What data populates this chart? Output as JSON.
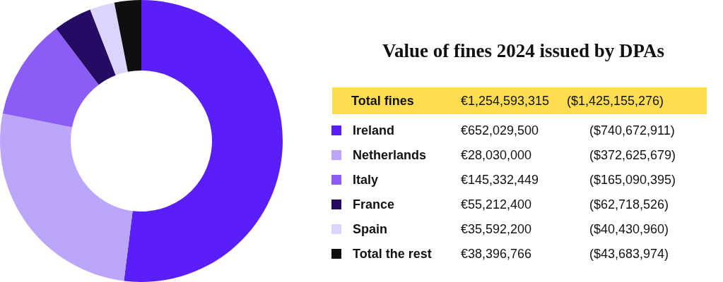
{
  "chart_data": {
    "type": "donut",
    "title": "Value of fines 2024 issued by DPAs",
    "categories": [
      "Ireland",
      "Netherlands",
      "Italy",
      "France",
      "Spain",
      "Total the rest"
    ],
    "values": [
      740672911,
      372625679,
      165090395,
      62718526,
      40430960,
      43683974
    ],
    "value_labels": [
      "($740,672,911)",
      "($372,625,679)",
      "($165,090,395)",
      "($62,718,526)",
      "($40,430,960)",
      "($43,683,974)"
    ],
    "legend": "right",
    "colors": [
      "#5a1ff8",
      "#bba6fc",
      "#8b5cf6",
      "#250b63",
      "#ddd4fd",
      "#0f0f12"
    ],
    "annotations": [
      "Total fines",
      "€1,254,593,315",
      "($1,425,155,276)",
      "€652,029,500",
      "€28,030,000",
      "€145,332,449",
      "€55,212,400",
      "€35,592,200",
      "€38,396,766"
    ]
  }
}
